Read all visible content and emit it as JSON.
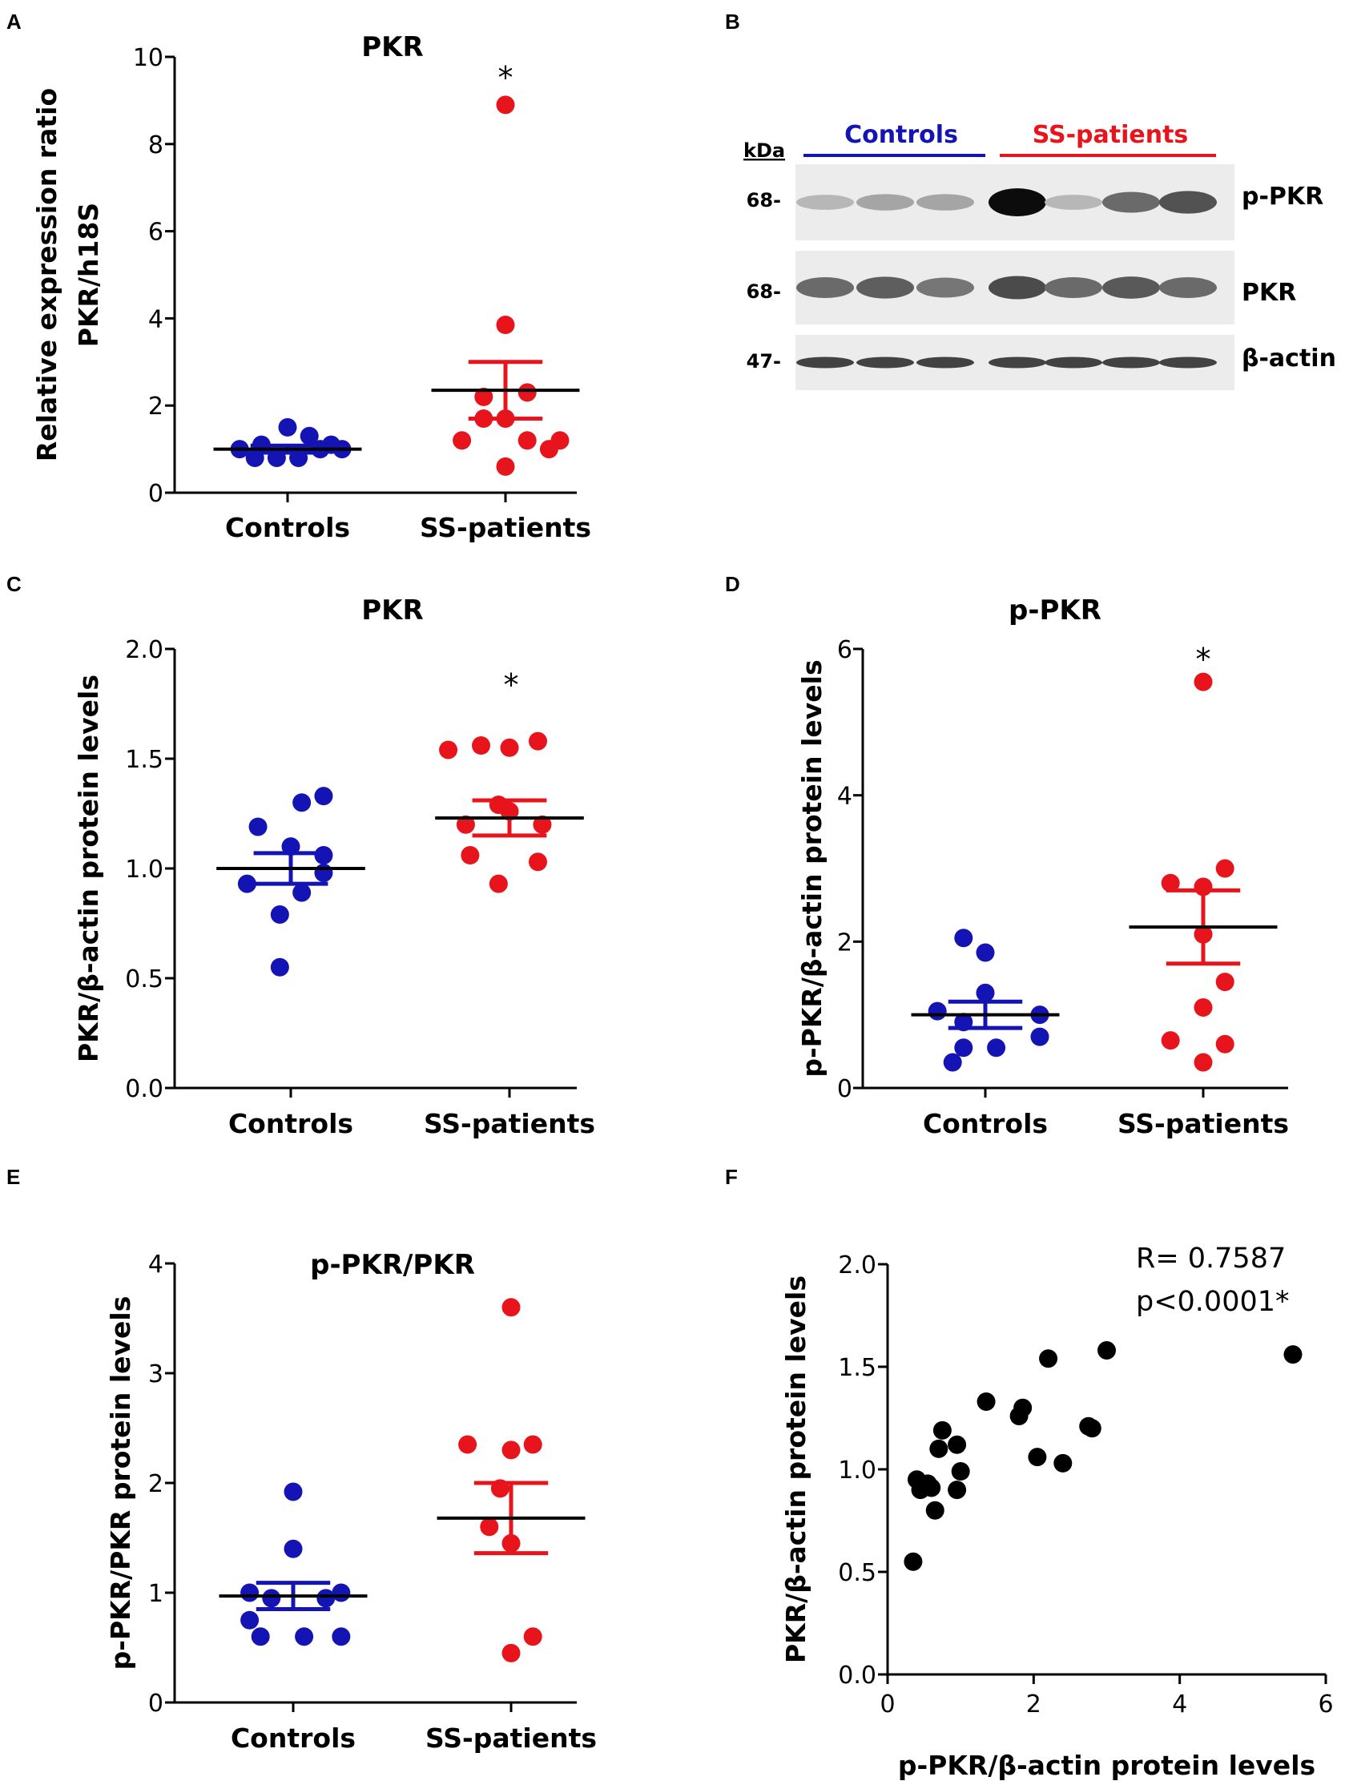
{
  "colors": {
    "controls": "#1414b4",
    "patients": "#e8141c",
    "black": "#000000"
  },
  "panels": {
    "A": {
      "letter": "A"
    },
    "B": {
      "letter": "B",
      "kda": "kDa",
      "group_controls": "Controls",
      "group_patients": "SS-patients",
      "rows": [
        {
          "marker": "68-",
          "label": "p-PKR",
          "intensity": [
            0.22,
            0.3,
            0.3,
            0.95,
            0.22,
            0.55,
            0.65
          ]
        },
        {
          "marker": "68-",
          "label": "PKR",
          "intensity": [
            0.55,
            0.6,
            0.5,
            0.68,
            0.55,
            0.62,
            0.55
          ]
        },
        {
          "marker": "47-",
          "label": "β-actin",
          "intensity": [
            0.72,
            0.72,
            0.72,
            0.72,
            0.72,
            0.72,
            0.72
          ]
        }
      ]
    },
    "C": {
      "letter": "C"
    },
    "D": {
      "letter": "D"
    },
    "E": {
      "letter": "E"
    },
    "F": {
      "letter": "F"
    }
  },
  "chart_data": [
    {
      "id": "A",
      "type": "scatter",
      "title": "PKR",
      "ylabel_lines": [
        "Relative expression ratio",
        "PKR/h18S"
      ],
      "categories": [
        "Controls",
        "SS-patients"
      ],
      "ylim": [
        0,
        10
      ],
      "yticks": [
        0,
        2,
        4,
        6,
        8,
        10
      ],
      "significance": "*",
      "series": [
        {
          "name": "Controls",
          "color": "controls",
          "values": [
            1.0,
            1.1,
            1.5,
            1.3,
            1.1,
            0.8,
            0.8,
            0.8,
            1.0,
            1.0
          ],
          "x_offsets": [
            -0.22,
            -0.12,
            0.0,
            0.1,
            0.2,
            -0.15,
            -0.05,
            0.05,
            0.15,
            0.25
          ],
          "mean": 1.0,
          "sem_low": 0.92,
          "sem_high": 1.08
        },
        {
          "name": "SS-patients",
          "color": "patients",
          "values": [
            8.9,
            3.85,
            2.2,
            1.7,
            1.2,
            1.2,
            1.0,
            0.6,
            1.2,
            1.7,
            2.3
          ],
          "x_offsets": [
            0.0,
            0.0,
            -0.1,
            0.0,
            -0.2,
            0.1,
            0.2,
            0.0,
            0.25,
            -0.1,
            0.1
          ],
          "mean": 2.35,
          "sem_low": 1.7,
          "sem_high": 3.0
        }
      ]
    },
    {
      "id": "C",
      "type": "scatter",
      "title": "PKR",
      "ylabel_lines": [
        "PKR/β-actin protein levels"
      ],
      "categories": [
        "Controls",
        "SS-patients"
      ],
      "ylim": [
        0,
        2.0
      ],
      "yticks": [
        0.0,
        0.5,
        1.0,
        1.5,
        2.0
      ],
      "ytick_decimals": 1,
      "significance": "*",
      "series": [
        {
          "name": "Controls",
          "color": "controls",
          "values": [
            1.33,
            1.3,
            1.19,
            1.1,
            1.06,
            0.98,
            0.93,
            0.89,
            0.79,
            0.55
          ],
          "x_offsets": [
            0.15,
            0.05,
            -0.15,
            0.0,
            0.15,
            0.15,
            -0.2,
            0.05,
            -0.05,
            -0.05
          ],
          "mean": 1.0,
          "sem_low": 0.93,
          "sem_high": 1.07
        },
        {
          "name": "SS-patients",
          "color": "patients",
          "values": [
            1.58,
            1.56,
            1.55,
            1.54,
            1.29,
            1.26,
            1.2,
            1.2,
            1.06,
            1.03,
            0.93
          ],
          "x_offsets": [
            0.13,
            -0.13,
            0.0,
            -0.28,
            -0.05,
            0.0,
            -0.2,
            0.15,
            -0.18,
            0.13,
            -0.05
          ],
          "mean": 1.23,
          "sem_low": 1.15,
          "sem_high": 1.31
        }
      ]
    },
    {
      "id": "D",
      "type": "scatter",
      "title": "p-PKR",
      "ylabel_lines": [
        "p-PKR/β-actin protein levels"
      ],
      "categories": [
        "Controls",
        "SS-patients"
      ],
      "ylim": [
        0,
        6
      ],
      "yticks": [
        0,
        2,
        4,
        6
      ],
      "significance": "*",
      "series": [
        {
          "name": "Controls",
          "color": "controls",
          "values": [
            2.05,
            1.85,
            1.3,
            1.05,
            1.0,
            0.9,
            0.7,
            0.55,
            0.55,
            0.35
          ],
          "x_offsets": [
            -0.1,
            0.0,
            0.0,
            -0.22,
            0.25,
            -0.1,
            0.25,
            0.05,
            -0.1,
            -0.15
          ],
          "mean": 1.0,
          "sem_low": 0.82,
          "sem_high": 1.18
        },
        {
          "name": "SS-patients",
          "color": "patients",
          "values": [
            5.55,
            3.0,
            2.8,
            2.75,
            2.1,
            1.45,
            1.1,
            0.65,
            0.6,
            0.35
          ],
          "x_offsets": [
            0.0,
            0.1,
            -0.15,
            0.0,
            0.0,
            0.1,
            0.0,
            -0.15,
            0.1,
            0.0
          ],
          "mean": 2.2,
          "sem_low": 1.7,
          "sem_high": 2.7
        }
      ]
    },
    {
      "id": "E",
      "type": "scatter",
      "title": "p-PKR/PKR",
      "ylabel_lines": [
        "p-PKR/PKR protein levels"
      ],
      "categories": [
        "Controls",
        "SS-patients"
      ],
      "ylim": [
        0,
        4
      ],
      "yticks": [
        0,
        1,
        2,
        3,
        4
      ],
      "significance": "",
      "series": [
        {
          "name": "Controls",
          "color": "controls",
          "values": [
            1.92,
            1.4,
            1.0,
            1.0,
            0.95,
            0.95,
            0.75,
            0.6,
            0.6,
            0.6
          ],
          "x_offsets": [
            0.0,
            0.0,
            -0.2,
            0.22,
            -0.1,
            0.15,
            -0.2,
            -0.15,
            0.05,
            0.22
          ],
          "mean": 0.97,
          "sem_low": 0.85,
          "sem_high": 1.09
        },
        {
          "name": "SS-patients",
          "color": "patients",
          "values": [
            3.6,
            2.35,
            2.35,
            2.3,
            1.95,
            1.6,
            1.45,
            0.6,
            0.45
          ],
          "x_offsets": [
            0.0,
            -0.2,
            0.1,
            0.0,
            -0.05,
            -0.1,
            0.0,
            0.1,
            0.0
          ],
          "mean": 1.68,
          "sem_low": 1.36,
          "sem_high": 2.0
        }
      ]
    },
    {
      "id": "F",
      "type": "scatter",
      "xlabel": "p-PKR/β-actin protein levels",
      "ylabel_lines": [
        "PKR/β-actin protein levels"
      ],
      "xlim": [
        0,
        6
      ],
      "xticks": [
        0,
        2,
        4,
        6
      ],
      "ylim": [
        0,
        2.0
      ],
      "yticks": [
        0.0,
        0.5,
        1.0,
        1.5,
        2.0
      ],
      "ytick_decimals": 1,
      "stat_r": "R= 0.7587",
      "stat_p": "p<0.0001*",
      "points": [
        [
          0.35,
          0.55
        ],
        [
          0.4,
          0.95
        ],
        [
          0.55,
          0.93
        ],
        [
          0.45,
          0.9
        ],
        [
          0.6,
          0.91
        ],
        [
          0.7,
          1.1
        ],
        [
          0.65,
          0.8
        ],
        [
          0.75,
          1.19
        ],
        [
          0.95,
          1.12
        ],
        [
          1.0,
          0.99
        ],
        [
          0.95,
          0.9
        ],
        [
          1.35,
          1.33
        ],
        [
          1.8,
          1.26
        ],
        [
          1.85,
          1.3
        ],
        [
          2.05,
          1.06
        ],
        [
          2.2,
          1.54
        ],
        [
          2.4,
          1.03
        ],
        [
          2.75,
          1.21
        ],
        [
          2.8,
          1.2
        ],
        [
          3.0,
          1.58
        ],
        [
          5.55,
          1.56
        ]
      ]
    }
  ]
}
